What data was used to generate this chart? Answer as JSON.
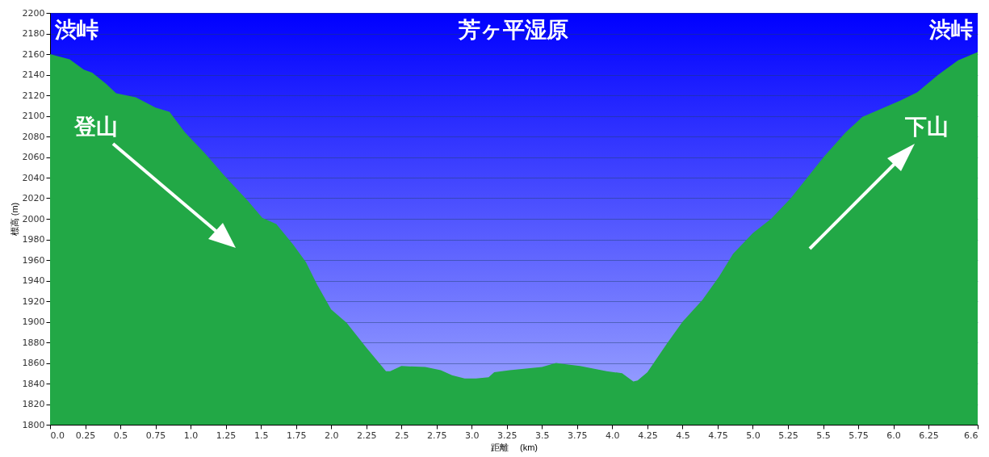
{
  "chart_data": {
    "type": "area",
    "xlabel": "距離 　(km)",
    "ylabel": "標高 (m)",
    "color": "#22a846",
    "x": [
      0,
      0.14,
      0.24,
      0.3,
      0.4,
      0.47,
      0.61,
      0.75,
      0.85,
      0.96,
      1.1,
      1.24,
      1.41,
      1.51,
      1.61,
      1.73,
      1.82,
      1.9,
      2.0,
      2.11,
      2.25,
      2.39,
      2.42,
      2.5,
      2.67,
      2.78,
      2.86,
      2.95,
      3.03,
      3.12,
      3.16,
      3.27,
      3.5,
      3.6,
      3.65,
      3.77,
      3.96,
      4.07,
      4.15,
      4.18,
      4.25,
      4.39,
      4.5,
      4.64,
      4.76,
      4.86,
      5.0,
      5.13,
      5.27,
      5.51,
      5.66,
      5.78,
      5.9,
      6.05,
      6.17,
      6.32,
      6.46,
      6.6
    ],
    "values": [
      2160,
      2155,
      2145,
      2142,
      2131,
      2122,
      2118,
      2108,
      2104,
      2084,
      2064,
      2042,
      2017,
      2001,
      1995,
      1975,
      1958,
      1936,
      1912,
      1899,
      1875,
      1852,
      1852,
      1857,
      1856,
      1853,
      1848,
      1845,
      1845,
      1846,
      1851,
      1853,
      1856,
      1860,
      1859,
      1857,
      1852,
      1850,
      1842,
      1843,
      1851,
      1879,
      1900,
      1921,
      1944,
      1966,
      1986,
      2000,
      2020,
      2061,
      2084,
      2099,
      2106,
      2115,
      2123,
      2140,
      2154,
      2162
    ],
    "xlim": [
      0,
      6.6
    ],
    "xticks": [
      {
        "value": 0,
        "label": "0.0"
      },
      0.25,
      0.5,
      0.75,
      {
        "value": 1,
        "label": "1.0"
      },
      1.25,
      1.5,
      1.75,
      {
        "value": 2,
        "label": "2.0"
      },
      2.25,
      2.5,
      2.75,
      {
        "value": 3,
        "label": "3.0"
      },
      3.25,
      3.5,
      3.75,
      {
        "value": 4,
        "label": "4.0"
      },
      4.25,
      4.5,
      4.75,
      {
        "value": 5,
        "label": "5.0"
      },
      5.25,
      5.5,
      5.75,
      {
        "value": 6,
        "label": "6.0"
      },
      6.25,
      6.6
    ],
    "ylim": [
      1800,
      2200
    ],
    "yticks": [
      1800,
      1820,
      1840,
      1860,
      1880,
      1900,
      1920,
      1940,
      1960,
      1980,
      2000,
      2020,
      2040,
      2060,
      2080,
      2100,
      2120,
      2140,
      2160,
      2180,
      2200
    ],
    "grid": "y",
    "annotations": [
      "渋峠",
      "芳ヶ平湿原",
      "渋峠",
      "登山",
      "下山"
    ]
  }
}
